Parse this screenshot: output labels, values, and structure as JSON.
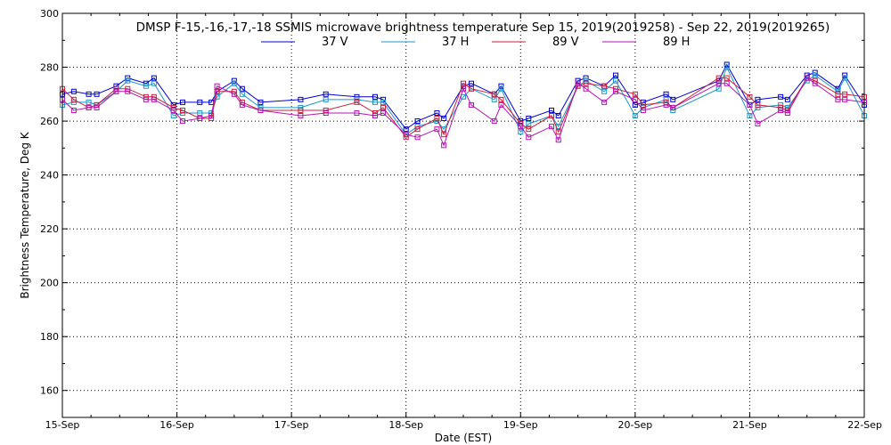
{
  "chart_data": {
    "type": "line",
    "title": "DMSP F-15,-16,-17,-18 SSMIS microwave brightness temperature Sep 15, 2019(2019258) - Sep 22, 2019(2019265)",
    "xlabel": "Date (EST)",
    "ylabel": "Brightness Temperature, Deg K",
    "xlim": [
      0,
      7
    ],
    "ylim": [
      150,
      300
    ],
    "x_ticks": [
      {
        "value": 0,
        "label": "15-Sep"
      },
      {
        "value": 1,
        "label": "16-Sep"
      },
      {
        "value": 2,
        "label": "17-Sep"
      },
      {
        "value": 3,
        "label": "18-Sep"
      },
      {
        "value": 4,
        "label": "19-Sep"
      },
      {
        "value": 5,
        "label": "20-Sep"
      },
      {
        "value": 6,
        "label": "21-Sep"
      },
      {
        "value": 7,
        "label": "22-Sep"
      }
    ],
    "y_ticks": [
      160,
      180,
      200,
      220,
      240,
      260,
      280,
      300
    ],
    "grid": true,
    "legend_position": "top-center",
    "x": [
      0.0,
      0.1,
      0.23,
      0.3,
      0.47,
      0.57,
      0.73,
      0.8,
      0.97,
      1.05,
      1.2,
      1.3,
      1.35,
      1.5,
      1.57,
      1.73,
      2.08,
      2.3,
      2.57,
      2.73,
      2.8,
      3.0,
      3.1,
      3.27,
      3.33,
      3.5,
      3.57,
      3.77,
      3.83,
      4.0,
      4.07,
      4.27,
      4.33,
      4.5,
      4.57,
      4.73,
      4.83,
      5.0,
      5.07,
      5.27,
      5.33,
      5.73,
      5.8,
      6.0,
      6.07,
      6.27,
      6.33,
      6.5,
      6.57,
      6.77,
      6.83,
      7.0
    ],
    "series": [
      {
        "name": "37 V",
        "color": "#0000cc",
        "values": [
          270,
          271,
          270,
          270,
          273,
          276,
          274,
          276,
          266,
          267,
          267,
          267,
          271,
          275,
          272,
          267,
          268,
          270,
          269,
          269,
          268,
          257,
          260,
          263,
          261,
          273,
          274,
          270,
          273,
          260,
          261,
          264,
          262,
          275,
          276,
          273,
          277,
          266,
          267,
          270,
          268,
          275,
          281,
          266,
          268,
          269,
          268,
          277,
          278,
          272,
          277,
          266
        ]
      },
      {
        "name": "37 H",
        "color": "#1e96c8",
        "values": [
          266,
          267,
          267,
          266,
          271,
          275,
          273,
          274,
          262,
          263,
          263,
          263,
          269,
          274,
          270,
          265,
          265,
          268,
          268,
          267,
          267,
          255,
          258,
          260,
          257,
          269,
          272,
          268,
          272,
          256,
          259,
          262,
          258,
          273,
          275,
          271,
          275,
          262,
          265,
          268,
          264,
          272,
          280,
          262,
          265,
          266,
          265,
          275,
          277,
          271,
          276,
          262
        ]
      },
      {
        "name": "89 V",
        "color": "#cc1e3c",
        "values": [
          272,
          268,
          265,
          266,
          272,
          272,
          269,
          269,
          265,
          264,
          261,
          261,
          271,
          271,
          267,
          264,
          264,
          264,
          267,
          263,
          265,
          254,
          257,
          261,
          255,
          274,
          272,
          270,
          268,
          259,
          257,
          262,
          256,
          273,
          274,
          273,
          272,
          270,
          266,
          267,
          265,
          276,
          276,
          269,
          266,
          265,
          264,
          276,
          275,
          270,
          270,
          269
        ]
      },
      {
        "name": "89 H",
        "color": "#b414b4",
        "values": [
          268,
          264,
          265,
          265,
          271,
          271,
          268,
          268,
          264,
          260,
          261,
          262,
          273,
          270,
          266,
          264,
          262,
          263,
          263,
          262,
          263,
          255,
          254,
          257,
          251,
          272,
          266,
          260,
          266,
          258,
          254,
          258,
          253,
          274,
          272,
          267,
          271,
          268,
          264,
          266,
          265,
          274,
          274,
          266,
          259,
          264,
          263,
          276,
          274,
          268,
          268,
          267
        ]
      }
    ]
  }
}
